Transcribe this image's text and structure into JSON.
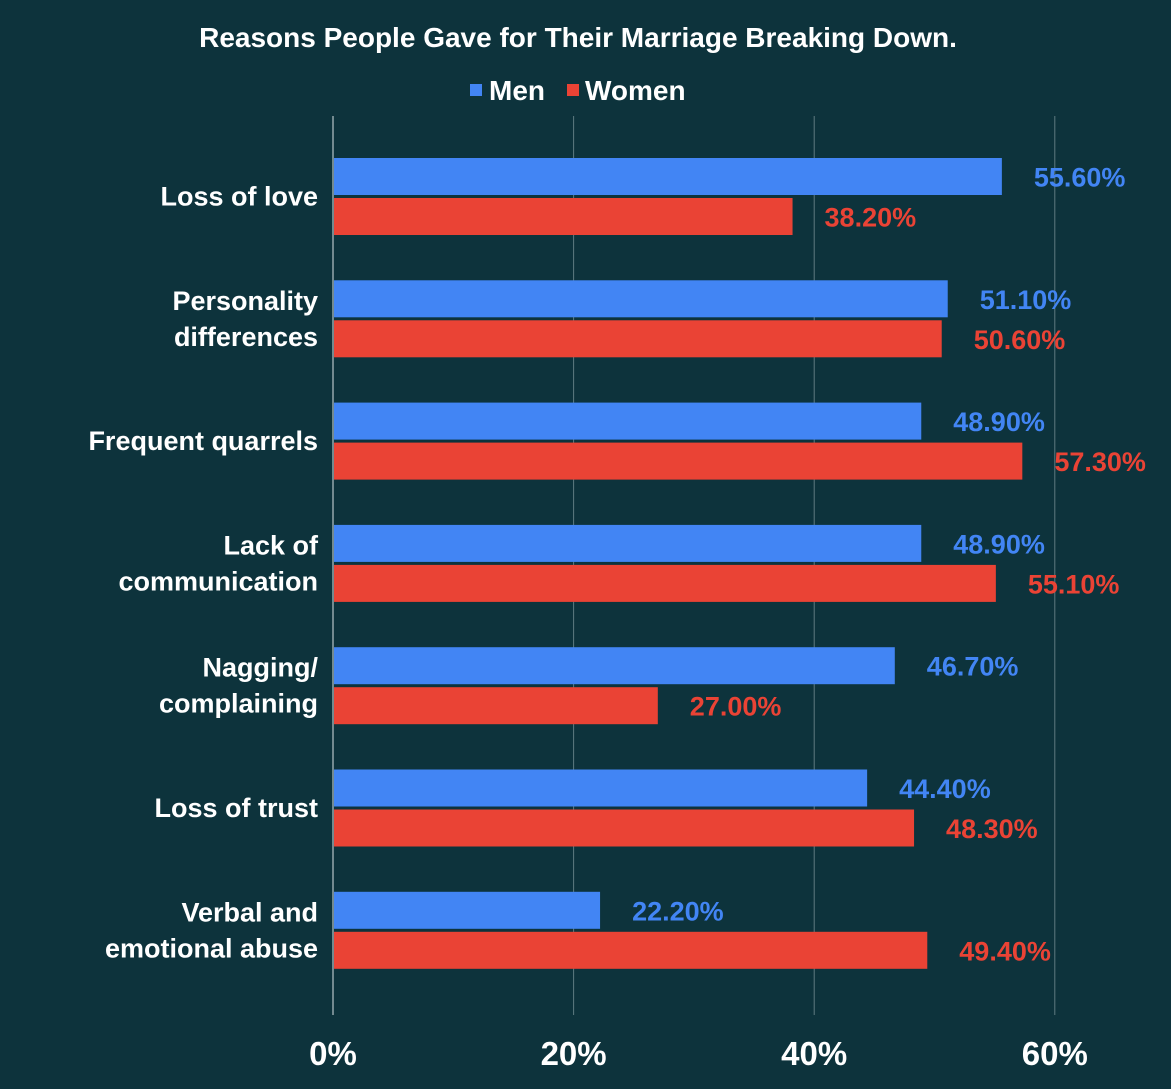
{
  "colors": {
    "background": "#0d333c",
    "grid": "#5f7b81",
    "men": "#4285f4",
    "women": "#ea4335",
    "text": "#ffffff"
  },
  "chart_data": {
    "type": "bar",
    "orientation": "horizontal",
    "title": "Reasons People Gave for Their Marriage Breaking Down.",
    "legend_position": "top",
    "grid": true,
    "xlim": [
      0,
      60
    ],
    "x_ticks": [
      0,
      20,
      40,
      60
    ],
    "x_tick_labels": [
      "0%",
      "20%",
      "40%",
      "60%"
    ],
    "categories": [
      [
        "Loss of love"
      ],
      [
        "Personality",
        "differences"
      ],
      [
        "Frequent quarrels"
      ],
      [
        "Lack of",
        "communication"
      ],
      [
        "Nagging/",
        "complaining"
      ],
      [
        "Loss of trust"
      ],
      [
        "Verbal and",
        "emotional abuse"
      ]
    ],
    "series": [
      {
        "name": "Men",
        "color": "#4285f4",
        "values": [
          55.6,
          51.1,
          48.9,
          48.9,
          46.7,
          44.4,
          22.2
        ],
        "labels": [
          "55.60%",
          "51.10%",
          "48.90%",
          "48.90%",
          "46.70%",
          "44.40%",
          "22.20%"
        ]
      },
      {
        "name": "Women",
        "color": "#ea4335",
        "values": [
          38.2,
          50.6,
          57.3,
          55.1,
          27.0,
          48.3,
          49.4
        ],
        "labels": [
          "38.20%",
          "50.60%",
          "57.30%",
          "55.10%",
          "27.00%",
          "48.30%",
          "49.40%"
        ]
      }
    ]
  }
}
